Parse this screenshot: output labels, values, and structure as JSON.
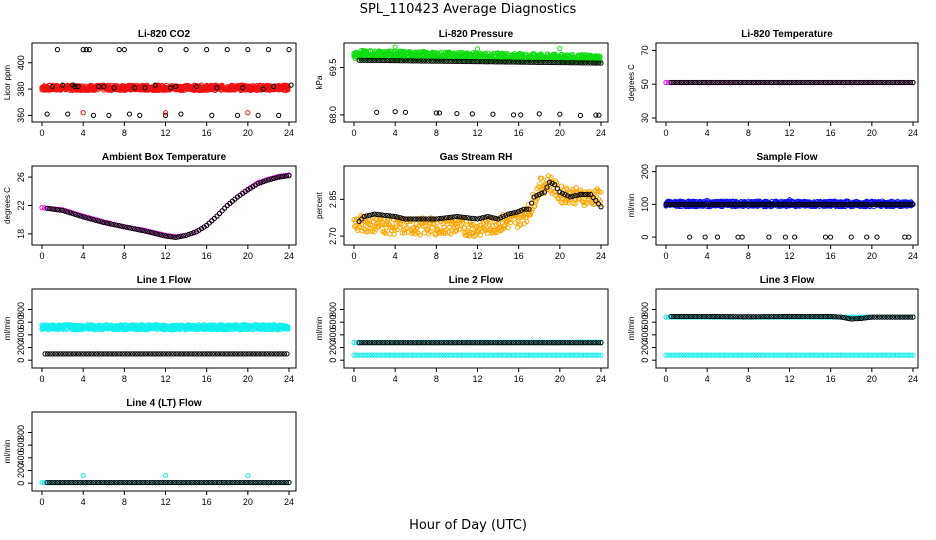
{
  "title": "SPL_110423  Average Diagnostics",
  "xlabel": "Hour of Day (UTC)",
  "colors": {
    "black": "#000000",
    "red": "#ee1111",
    "green": "#11dd11",
    "magenta": "#ee11ee",
    "orange": "#ffa500",
    "blue": "#1111ee",
    "cyan": "#11eeee"
  },
  "chart_data": [
    {
      "type": "scatter",
      "title": "Li-820 CO2",
      "ylabel": "Licor ppm",
      "xlim": [
        0,
        24
      ],
      "xticks": [
        0,
        4,
        8,
        12,
        16,
        20,
        24
      ],
      "ylim": [
        358,
        412
      ],
      "yticks": [
        360,
        380,
        400
      ],
      "series": [
        {
          "color": "red",
          "band": [
            379,
            383
          ]
        },
        {
          "color": "black",
          "values": [
            [
              0.5,
              361
            ],
            [
              1,
              382
            ],
            [
              1.5,
              410
            ],
            [
              2,
              383
            ],
            [
              2.5,
              361
            ],
            [
              3,
              383
            ],
            [
              3.2,
              382
            ],
            [
              3.5,
              382
            ],
            [
              4,
              410
            ],
            [
              4.3,
              410
            ],
            [
              4.6,
              410
            ],
            [
              5,
              360
            ],
            [
              5.5,
              382
            ],
            [
              6,
              382
            ],
            [
              6.5,
              360
            ],
            [
              7,
              381
            ],
            [
              7.5,
              410
            ],
            [
              8,
              410
            ],
            [
              8.5,
              361
            ],
            [
              9,
              381
            ],
            [
              9.5,
              360
            ],
            [
              10,
              381
            ],
            [
              11,
              383
            ],
            [
              11.5,
              410
            ],
            [
              12,
              360
            ],
            [
              12.5,
              381
            ],
            [
              13,
              382
            ],
            [
              13.5,
              361
            ],
            [
              14,
              410
            ],
            [
              15,
              382
            ],
            [
              16,
              410
            ],
            [
              16.5,
              360
            ],
            [
              17,
              381
            ],
            [
              18,
              410
            ],
            [
              19,
              360
            ],
            [
              19.5,
              381
            ],
            [
              20,
              410
            ],
            [
              21,
              360
            ],
            [
              21.5,
              380
            ],
            [
              22,
              410
            ],
            [
              22.5,
              382
            ],
            [
              23,
              360
            ],
            [
              24,
              410
            ],
            [
              24.2,
              383
            ]
          ]
        },
        {
          "color": "red",
          "values": [
            [
              4,
              362
            ],
            [
              12,
              362
            ],
            [
              20,
              362
            ]
          ]
        }
      ]
    },
    {
      "type": "scatter",
      "title": "Li-820 Pressure",
      "ylabel": "kPa",
      "xlim": [
        0,
        24
      ],
      "xticks": [
        0,
        4,
        8,
        12,
        16,
        20,
        24
      ],
      "ylim": [
        67.9,
        70.15
      ],
      "yticks": [
        68.0,
        69.5
      ],
      "series": [
        {
          "color": "green",
          "band_start": [
            69.78,
            70.05
          ],
          "band_end": [
            69.67,
            69.9
          ]
        },
        {
          "color": "black",
          "line": [
            [
              0.5,
              69.73
            ],
            [
              24,
              69.64
            ]
          ]
        },
        {
          "color": "black",
          "values": [
            [
              2.2,
              68.08
            ],
            [
              4,
              68.1
            ],
            [
              5,
              68.08
            ],
            [
              8,
              68.06
            ],
            [
              8.3,
              68.06
            ],
            [
              10,
              68.04
            ],
            [
              11.5,
              68.03
            ],
            [
              13.5,
              68.02
            ],
            [
              15.5,
              68.0
            ],
            [
              16.2,
              68.0
            ],
            [
              18,
              68.03
            ],
            [
              20,
              68.02
            ],
            [
              22,
              67.98
            ],
            [
              23.5,
              67.99
            ],
            [
              23.8,
              67.99
            ]
          ]
        },
        {
          "color": "green",
          "values": [
            [
              4,
              70.15
            ],
            [
              12,
              70.09
            ],
            [
              20,
              70.1
            ]
          ]
        }
      ]
    },
    {
      "type": "scatter",
      "title": "Li-820 Temperature",
      "ylabel": "degrees C",
      "xlim": [
        0,
        24
      ],
      "xticks": [
        0,
        4,
        8,
        12,
        16,
        20,
        24
      ],
      "ylim": [
        30,
        72
      ],
      "yticks": [
        30,
        50,
        70
      ],
      "series": [
        {
          "color": "magenta",
          "line": [
            [
              0,
              51
            ],
            [
              24,
              51
            ]
          ]
        },
        {
          "color": "black",
          "line": [
            [
              0.5,
              51
            ],
            [
              24,
              51
            ]
          ]
        }
      ]
    },
    {
      "type": "scatter",
      "title": "Ambient Box Temperature",
      "ylabel": "degrees C",
      "xlim": [
        0,
        24
      ],
      "xticks": [
        0,
        4,
        8,
        12,
        16,
        20,
        24
      ],
      "ylim": [
        17,
        27
      ],
      "yticks": [
        18,
        22,
        26
      ],
      "series": [
        {
          "color": "magenta",
          "curve": [
            [
              0,
              21.7
            ],
            [
              2,
              21.4
            ],
            [
              4,
              20.5
            ],
            [
              6,
              19.7
            ],
            [
              8,
              19.0
            ],
            [
              10,
              18.5
            ],
            [
              12,
              17.8
            ],
            [
              13,
              17.6
            ],
            [
              14,
              17.8
            ],
            [
              15,
              18.3
            ],
            [
              16,
              19.2
            ],
            [
              17,
              20.5
            ],
            [
              18,
              22
            ],
            [
              19,
              23.2
            ],
            [
              20,
              24.3
            ],
            [
              21,
              25.2
            ],
            [
              22,
              25.7
            ],
            [
              23,
              26.1
            ],
            [
              24,
              26.3
            ]
          ]
        },
        {
          "color": "black",
          "curve": [
            [
              0.5,
              21.6
            ],
            [
              2,
              21.3
            ],
            [
              4,
              20.4
            ],
            [
              6,
              19.6
            ],
            [
              8,
              19.0
            ],
            [
              10,
              18.4
            ],
            [
              12,
              17.7
            ],
            [
              13,
              17.5
            ],
            [
              14,
              17.8
            ],
            [
              15,
              18.3
            ],
            [
              16,
              19.2
            ],
            [
              17,
              20.5
            ],
            [
              18,
              22
            ],
            [
              19,
              23.2
            ],
            [
              20,
              24.2
            ],
            [
              21,
              25.1
            ],
            [
              22,
              25.6
            ],
            [
              23,
              26
            ],
            [
              24,
              26.2
            ]
          ]
        }
      ]
    },
    {
      "type": "scatter",
      "title": "Gas Stream RH",
      "ylabel": "percent",
      "xlim": [
        0,
        24
      ],
      "xticks": [
        0,
        4,
        8,
        12,
        16,
        20,
        24
      ],
      "ylim": [
        2.68,
        2.97
      ],
      "yticks": [
        2.7,
        2.85
      ],
      "series": [
        {
          "color": "orange",
          "cloud": [
            [
              0,
              2.75
            ],
            [
              2,
              2.75
            ],
            [
              4,
              2.74
            ],
            [
              6,
              2.74
            ],
            [
              8,
              2.74
            ],
            [
              10,
              2.74
            ],
            [
              12,
              2.73
            ],
            [
              14,
              2.75
            ],
            [
              16,
              2.77
            ],
            [
              17,
              2.8
            ],
            [
              18,
              2.9
            ],
            [
              19,
              2.92
            ],
            [
              20,
              2.87
            ],
            [
              21,
              2.87
            ],
            [
              22,
              2.86
            ],
            [
              24,
              2.86
            ]
          ],
          "spread": 0.035
        },
        {
          "color": "black",
          "curve": [
            [
              0.5,
              2.76
            ],
            [
              1,
              2.78
            ],
            [
              2,
              2.79
            ],
            [
              4,
              2.78
            ],
            [
              5,
              2.77
            ],
            [
              6,
              2.77
            ],
            [
              8,
              2.77
            ],
            [
              10,
              2.78
            ],
            [
              12,
              2.77
            ],
            [
              13,
              2.78
            ],
            [
              14,
              2.77
            ],
            [
              15,
              2.79
            ],
            [
              16,
              2.8
            ],
            [
              16.5,
              2.81
            ],
            [
              17,
              2.81
            ],
            [
              17.5,
              2.86
            ],
            [
              18,
              2.87
            ],
            [
              18.5,
              2.88
            ],
            [
              19,
              2.92
            ],
            [
              19.5,
              2.91
            ],
            [
              20,
              2.88
            ],
            [
              21,
              2.86
            ],
            [
              22,
              2.87
            ],
            [
              23,
              2.87
            ],
            [
              24,
              2.82
            ]
          ]
        }
      ]
    },
    {
      "type": "scatter",
      "title": "Sample Flow",
      "ylabel": "ml/min",
      "xlim": [
        0,
        24
      ],
      "xticks": [
        0,
        4,
        8,
        12,
        16,
        20,
        24
      ],
      "ylim": [
        -12,
        205
      ],
      "yticks": [
        0,
        100,
        200
      ],
      "series": [
        {
          "color": "blue",
          "band": [
            93,
            110
          ]
        },
        {
          "color": "black",
          "line": [
            [
              0,
              100
            ],
            [
              24,
              100
            ]
          ]
        },
        {
          "color": "black",
          "values": [
            [
              2.3,
              0
            ],
            [
              3.8,
              0
            ],
            [
              5,
              0
            ],
            [
              7,
              0
            ],
            [
              7.4,
              0
            ],
            [
              10,
              0
            ],
            [
              11.6,
              0
            ],
            [
              12.5,
              0
            ],
            [
              15.5,
              0
            ],
            [
              16,
              0
            ],
            [
              18,
              0
            ],
            [
              19.5,
              0
            ],
            [
              20.5,
              0
            ],
            [
              23.2,
              0
            ],
            [
              23.6,
              0
            ]
          ]
        },
        {
          "color": "blue",
          "values": [
            [
              4,
              112
            ],
            [
              12,
              114
            ],
            [
              20,
              110
            ]
          ]
        }
      ]
    },
    {
      "type": "scatter",
      "title": "Line 1 Flow",
      "ylabel": "ml/min",
      "xlim": [
        0,
        24
      ],
      "xticks": [
        0,
        4,
        8,
        12,
        16,
        20,
        24
      ],
      "ylim": [
        -60,
        1060
      ],
      "yticks": [
        0,
        200,
        400,
        600,
        800
      ],
      "series": [
        {
          "color": "cyan",
          "band": [
            480,
            560
          ]
        },
        {
          "color": "black",
          "line": [
            [
              0.3,
              100
            ],
            [
              24,
              100
            ]
          ]
        }
      ]
    },
    {
      "type": "scatter",
      "title": "Line 2 Flow",
      "ylabel": "ml/min",
      "xlim": [
        0,
        24
      ],
      "xticks": [
        0,
        4,
        8,
        12,
        16,
        20,
        24
      ],
      "ylim": [
        -60,
        1060
      ],
      "yticks": [
        0,
        200,
        400,
        600,
        800
      ],
      "series": [
        {
          "color": "cyan",
          "line": [
            [
              0,
              280
            ],
            [
              24,
              285
            ]
          ]
        },
        {
          "color": "black",
          "line": [
            [
              0.5,
              275
            ],
            [
              24,
              275
            ]
          ]
        },
        {
          "color": "cyan",
          "line": [
            [
              0,
              80
            ],
            [
              24,
              80
            ]
          ]
        }
      ]
    },
    {
      "type": "scatter",
      "title": "Line 3 Flow",
      "ylabel": "ml/min",
      "xlim": [
        0,
        24
      ],
      "xticks": [
        0,
        4,
        8,
        12,
        16,
        20,
        24
      ],
      "ylim": [
        -60,
        1060
      ],
      "yticks": [
        0,
        200,
        400,
        600,
        800
      ],
      "series": [
        {
          "color": "cyan",
          "line": [
            [
              0,
              680
            ],
            [
              24,
              680
            ]
          ]
        },
        {
          "color": "black",
          "curve": [
            [
              0.5,
              690
            ],
            [
              4,
              690
            ],
            [
              8,
              685
            ],
            [
              12,
              690
            ],
            [
              16,
              690
            ],
            [
              17,
              680
            ],
            [
              18,
              650
            ],
            [
              19,
              660
            ],
            [
              20,
              680
            ],
            [
              24,
              680
            ]
          ]
        },
        {
          "color": "cyan",
          "line": [
            [
              0,
              80
            ],
            [
              24,
              80
            ]
          ]
        }
      ]
    },
    {
      "type": "scatter",
      "title": "Line 4 (LT) Flow",
      "ylabel": "ml/min",
      "xlim": [
        0,
        24
      ],
      "xticks": [
        0,
        4,
        8,
        12,
        16,
        20,
        24
      ],
      "ylim": [
        -60,
        1060
      ],
      "yticks": [
        0,
        200,
        400,
        600,
        800
      ],
      "series": [
        {
          "color": "cyan",
          "line": [
            [
              0,
              10
            ],
            [
              24,
              10
            ]
          ]
        },
        {
          "color": "black",
          "line": [
            [
              0.5,
              10
            ],
            [
              24,
              10
            ]
          ]
        },
        {
          "color": "cyan",
          "values": [
            [
              4,
              120
            ],
            [
              12,
              120
            ],
            [
              20,
              120
            ]
          ]
        }
      ]
    }
  ]
}
